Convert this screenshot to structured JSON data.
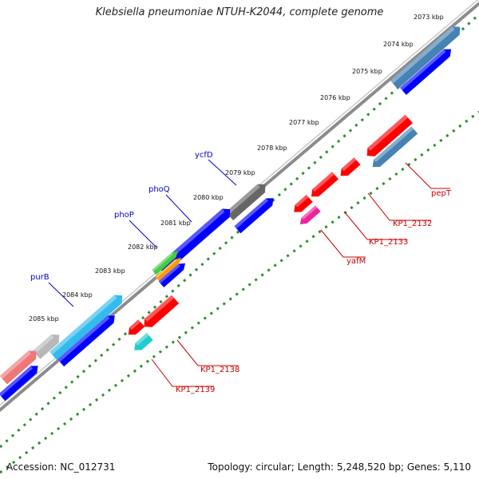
{
  "header": {
    "title": "Klebsiella pneumoniae NTUH-K2044, complete genome"
  },
  "footer": {
    "accession": "Accession: NC_012731",
    "stats": "Topology: circular; Length: 5,248,520 bp; Genes: 5,110"
  },
  "scale": {
    "unit": "kbp",
    "ticks": [
      "2073 kbp",
      "2074 kbp",
      "2075 kbp",
      "2076 kbp",
      "2077 kbp",
      "2078 kbp",
      "2079 kbp",
      "2080 kbp",
      "2081 kbp",
      "2082 kbp",
      "2083 kbp",
      "2084 kbp",
      "2085 kbp"
    ]
  },
  "colors": {
    "backbone": "#8c8c8c",
    "scale_dots": "#2e8b2e",
    "forward_label": "#0000cc",
    "reverse_label": "#cc0000"
  },
  "forward_genes": [
    {
      "name": "ycfD",
      "color": "#666666"
    },
    {
      "name": "phoQ",
      "color": "#0000ff"
    },
    {
      "name": "phoP",
      "color": "#44cc44"
    },
    {
      "name": "purB",
      "color": "#33bbee"
    }
  ],
  "reverse_genes": [
    {
      "name": "pepT",
      "color": "#ff0000"
    },
    {
      "name": "KP1_2132",
      "color": "#ff0000"
    },
    {
      "name": "KP1_2133",
      "color": "#ff0000"
    },
    {
      "name": "yafM",
      "color": "#ee2299"
    },
    {
      "name": "KP1_2138",
      "color": "#ff0000"
    },
    {
      "name": "KP1_2139",
      "color": "#22cccc"
    }
  ]
}
